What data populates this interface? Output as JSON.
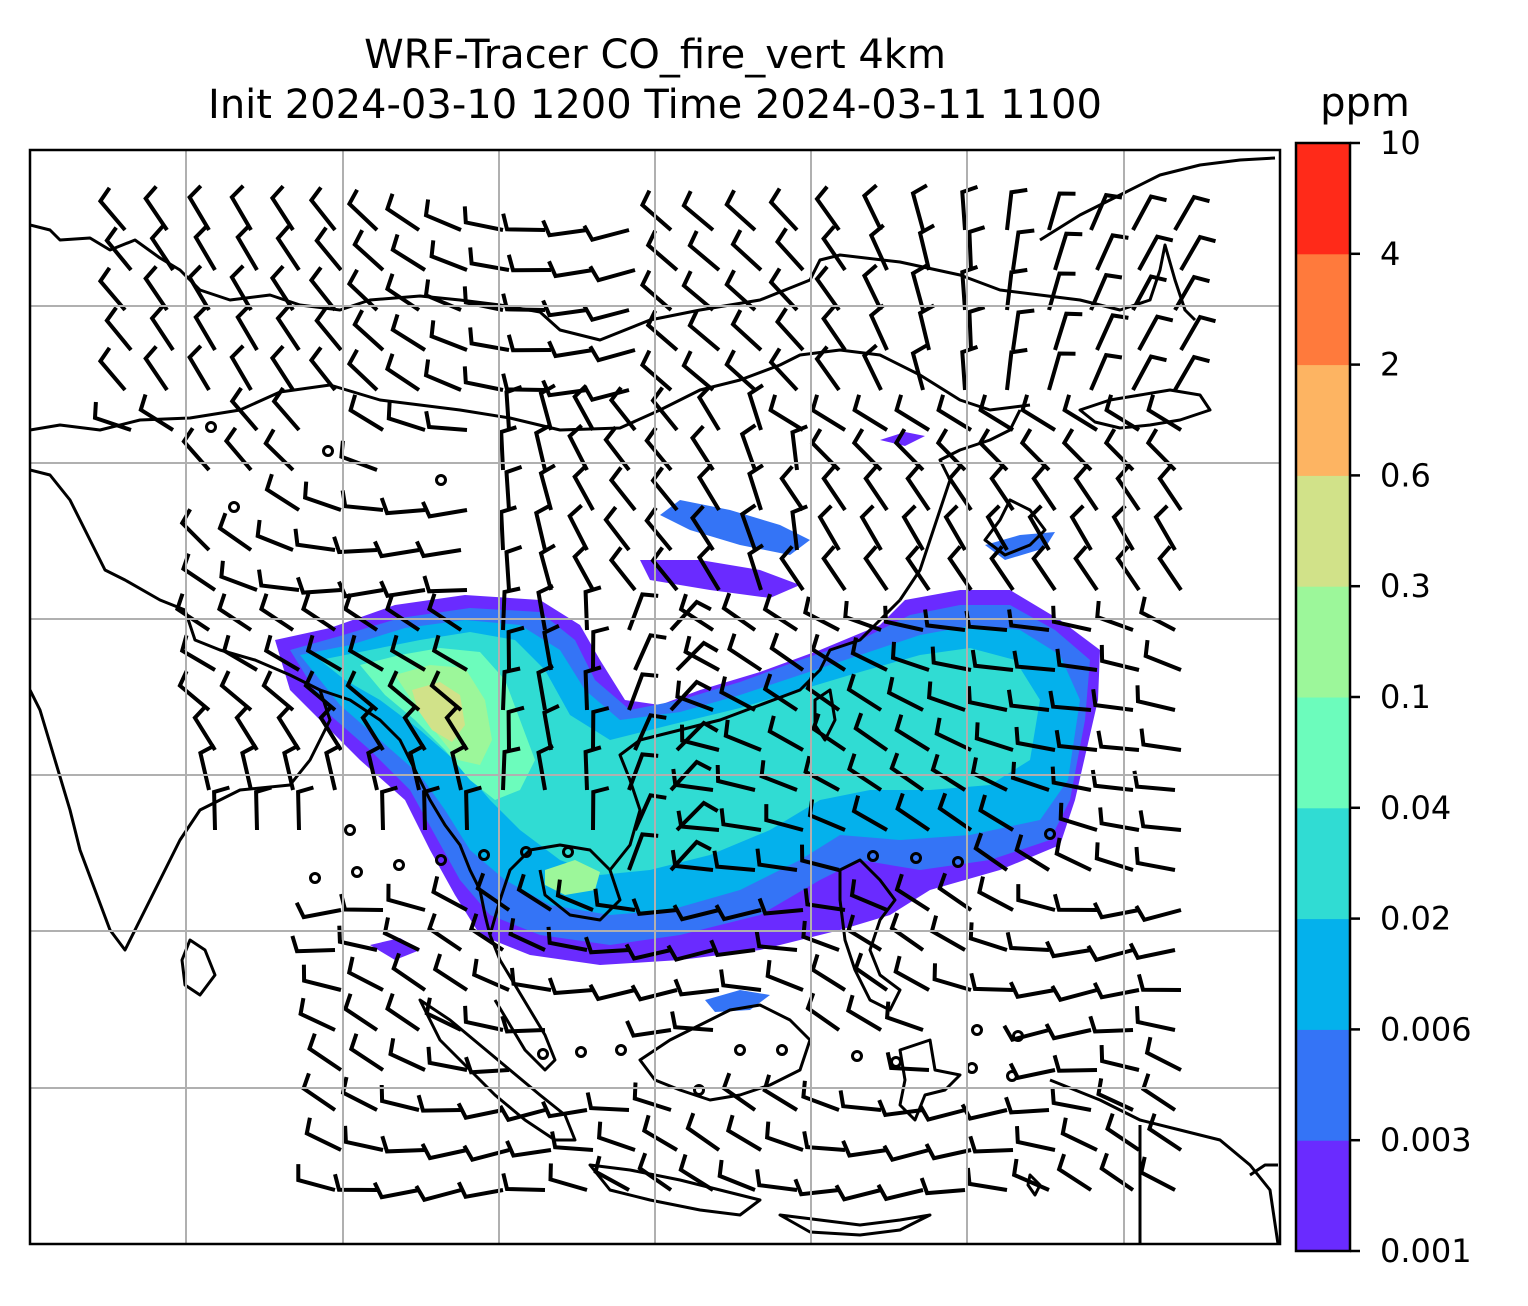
{
  "title": {
    "line1": "WRF-Tracer CO_fire_vert 4km",
    "line2": "Init 2024-03-10 1200 Time 2024-03-11 1100"
  },
  "colorbar": {
    "unit": "ppm",
    "levels": [
      "0.001",
      "0.003",
      "0.006",
      "0.02",
      "0.04",
      "0.1",
      "0.3",
      "0.6",
      "2",
      "4",
      "10"
    ],
    "colors": [
      "#6a2bff",
      "#3474f6",
      "#04b1ec",
      "#30dcd3",
      "#6cfcbc",
      "#9cf79a",
      "#d1e289",
      "#fdb462",
      "#ff7a3c",
      "#ff2a19"
    ]
  },
  "map": {
    "variable": "CO_fire_vert",
    "level": "4km",
    "overlay": "wind barbs",
    "gridlines": true,
    "coastlines": true,
    "borders": true
  }
}
